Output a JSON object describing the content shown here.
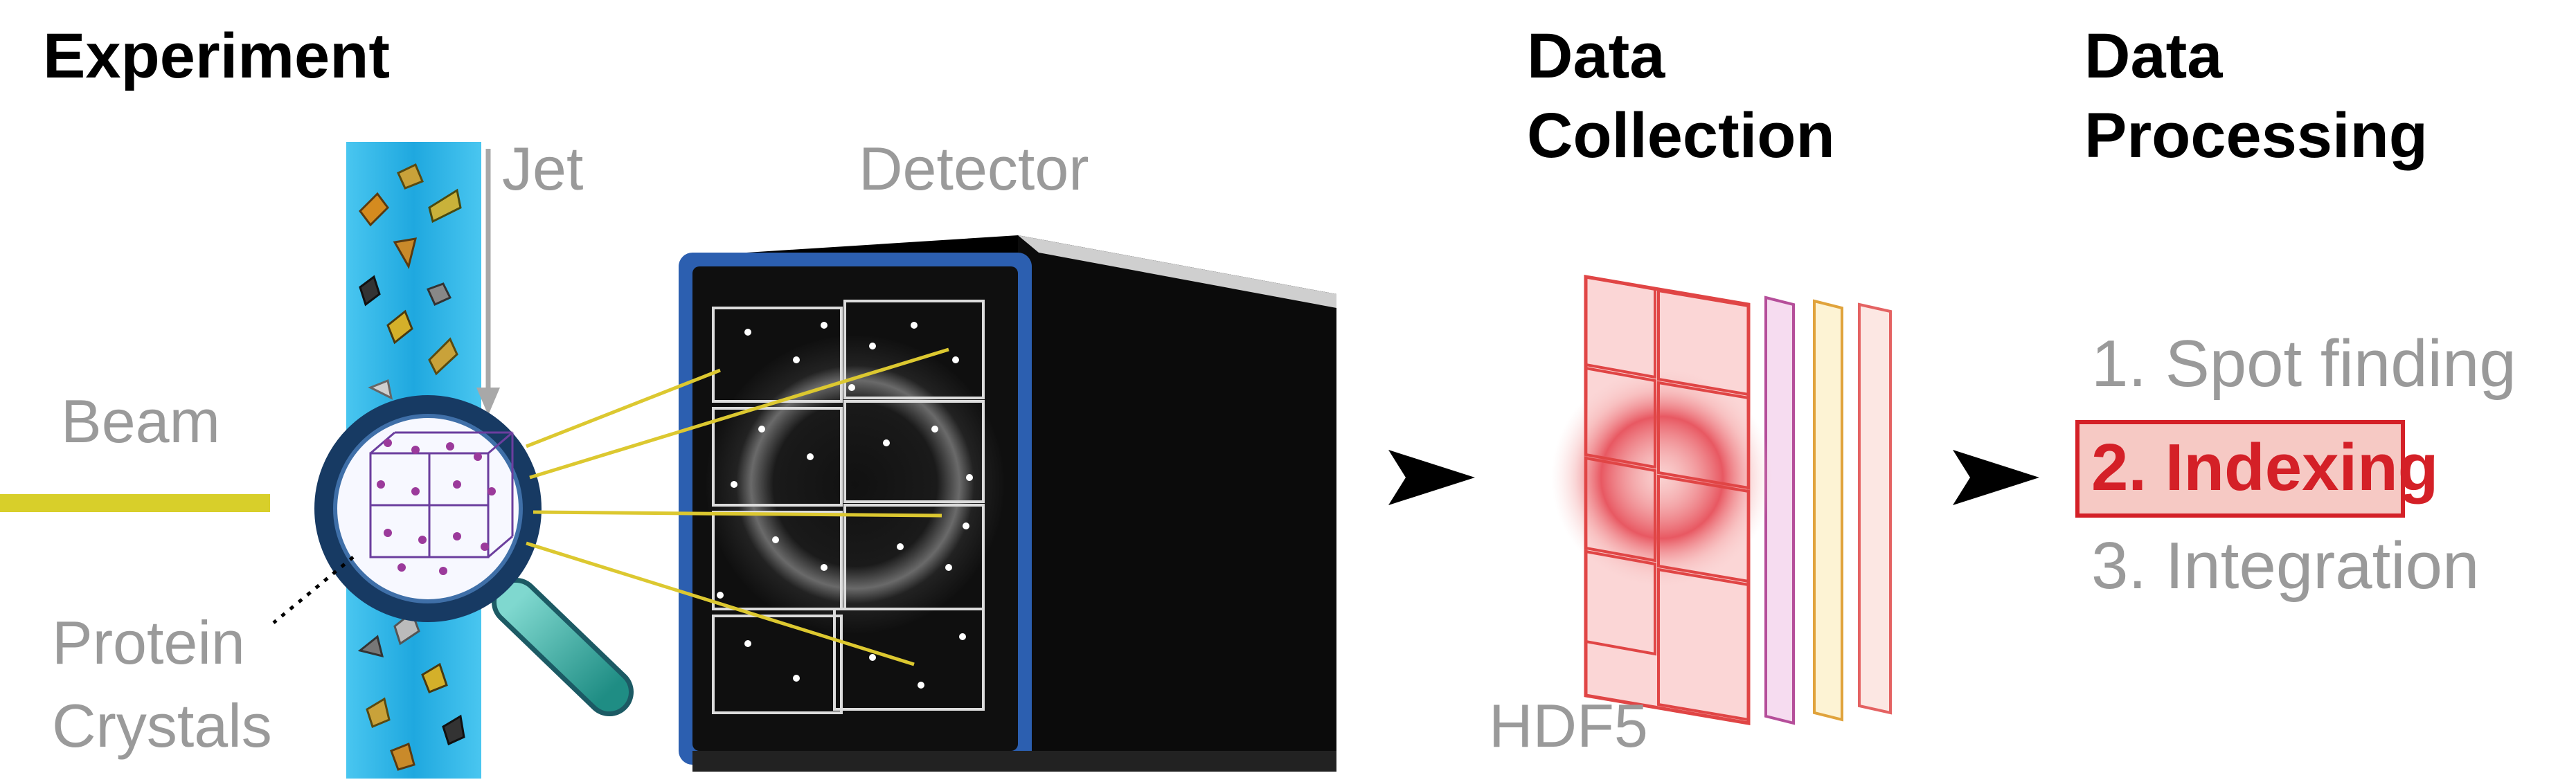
{
  "sections": {
    "experiment": "Experiment",
    "data_collection_line1": "Data",
    "data_collection_line2": "Collection",
    "data_processing_line1": "Data",
    "data_processing_line2": "Processing"
  },
  "labels": {
    "jet": "Jet",
    "detector": "Detector",
    "beam": "Beam",
    "protein_line1": "Protein",
    "protein_line2": "Crystals",
    "file_format": "HDF5"
  },
  "steps": [
    {
      "label": "1. Spot finding",
      "highlighted": false
    },
    {
      "label": "2. Indexing",
      "highlighted": true
    },
    {
      "label": "3. Integration",
      "highlighted": false
    }
  ],
  "colors": {
    "jet": "#29b6e8",
    "beam": "#d8cf2a",
    "highlight": "#d42027",
    "highlight_bg": "#f6c9c4",
    "detector_frame": "#2c5fb0",
    "magnifier_handle": "#2aa79b"
  }
}
